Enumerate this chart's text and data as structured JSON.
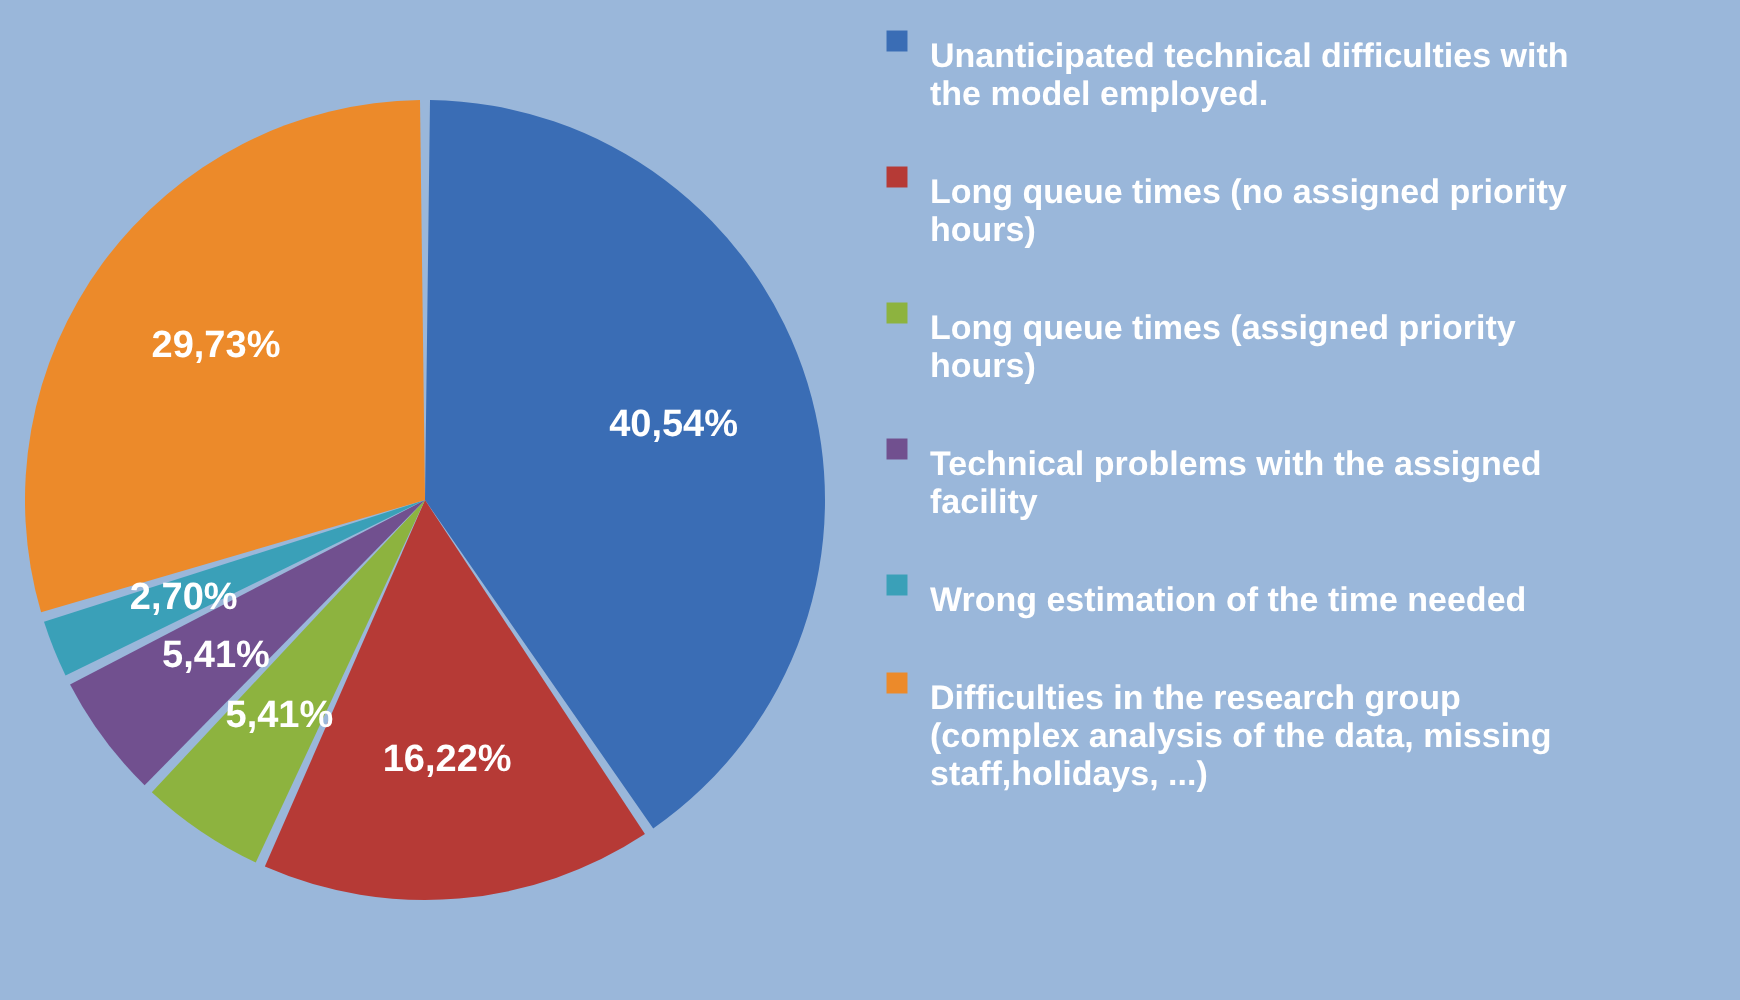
{
  "chart_data": {
    "type": "pie",
    "categories": [
      "Unanticipated technical difficulties with the model employed.",
      "Long queue times (no assigned priority hours)",
      "Long queue times (assigned priority hours)",
      "Technical problems with the assigned facility",
      "Wrong estimation of the time needed",
      "Difficulties in the research group (complex analysis of the data,  missing staff,holidays, ...)"
    ],
    "values": [
      40.54,
      16.22,
      5.41,
      5.41,
      2.7,
      29.73
    ],
    "value_labels": [
      "40,54%",
      "16,22%",
      "5,41%",
      "5,41%",
      "2,70%",
      "29,73%"
    ],
    "colors": [
      "#3a6db5",
      "#b63a36",
      "#8db33f",
      "#71508f",
      "#3aa0b8",
      "#ec8a2a"
    ],
    "legend": "right"
  }
}
